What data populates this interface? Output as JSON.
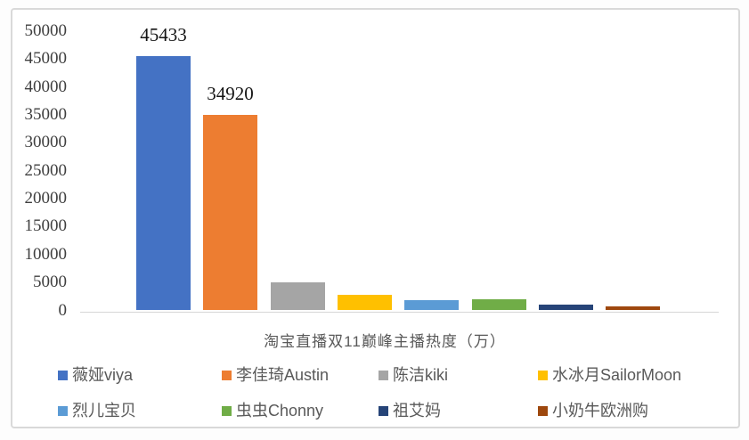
{
  "chart_data": {
    "type": "bar",
    "title": "淘宝直播双11巅峰主播热度（万）",
    "xlabel": "",
    "ylabel": "",
    "ylim": [
      0,
      50000
    ],
    "y_ticks": [
      0,
      5000,
      10000,
      15000,
      20000,
      25000,
      30000,
      35000,
      40000,
      45000,
      50000
    ],
    "grid": false,
    "legend_position": "bottom",
    "categories": [
      "薇娅viya",
      "李佳琦Austin",
      "陈洁kiki",
      "水冰月SailorMoon",
      "烈儿宝贝",
      "虫虫Chonny",
      "祖艾妈",
      "小奶牛欧洲购"
    ],
    "series": [
      {
        "name": "薇娅viya",
        "value": 45433,
        "data_label": "45433",
        "color": "#4472C4"
      },
      {
        "name": "李佳琦Austin",
        "value": 34920,
        "data_label": "34920",
        "color": "#ED7D31"
      },
      {
        "name": "陈洁kiki",
        "value": 5000,
        "data_label": null,
        "color": "#A5A5A5"
      },
      {
        "name": "水冰月SailorMoon",
        "value": 2700,
        "data_label": null,
        "color": "#FFC000"
      },
      {
        "name": "烈儿宝贝",
        "value": 1800,
        "data_label": null,
        "color": "#5B9BD5"
      },
      {
        "name": "虫虫Chonny",
        "value": 1900,
        "data_label": null,
        "color": "#70AD47"
      },
      {
        "name": "祖艾妈",
        "value": 1000,
        "data_label": null,
        "color": "#264478"
      },
      {
        "name": "小奶牛欧洲购",
        "value": 700,
        "data_label": null,
        "color": "#9E480E"
      }
    ],
    "colors": {
      "axis_line": "#d6d6d6",
      "tick_text": "#3f3f3f",
      "data_label_text": "#141414",
      "title_text": "#595959",
      "card_border": "#d9d9d9"
    }
  }
}
